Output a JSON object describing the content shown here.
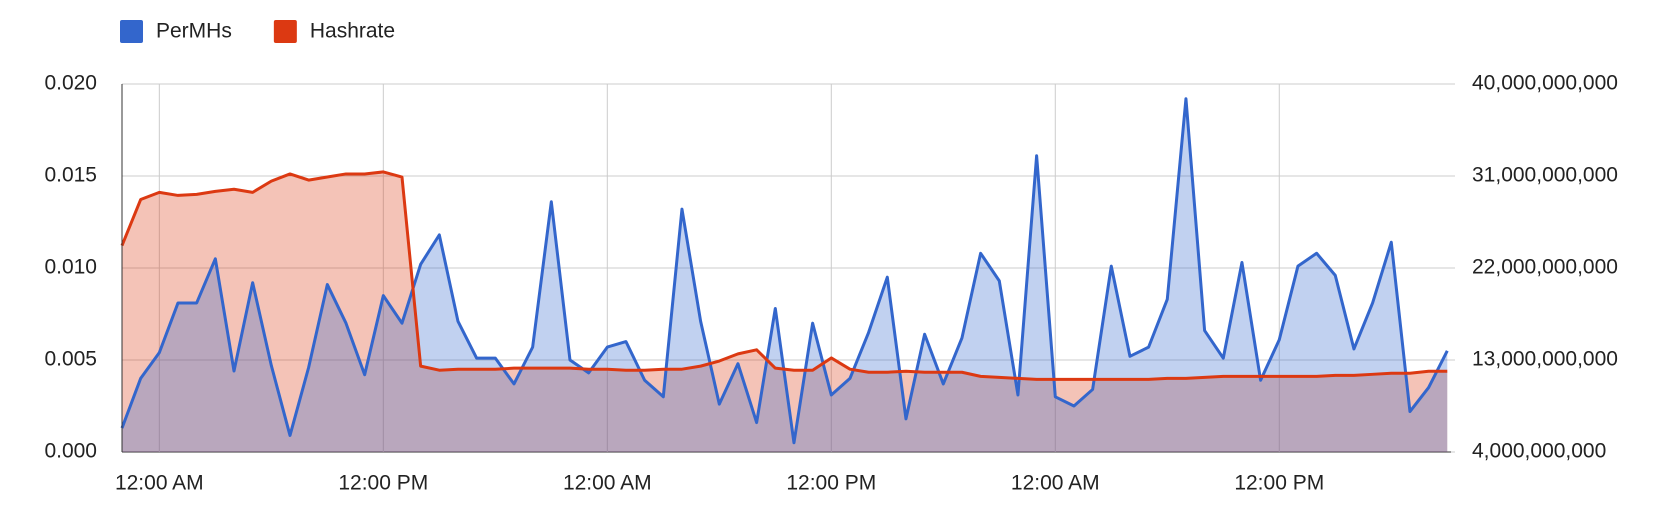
{
  "chart_data": {
    "type": "area",
    "legend": "top",
    "grid": true,
    "x": [
      -2,
      -1,
      0,
      1,
      2,
      3,
      4,
      5,
      6,
      7,
      8,
      9,
      10,
      11,
      12,
      13,
      14,
      15,
      16,
      17,
      18,
      19,
      20,
      21,
      22,
      23,
      24,
      25,
      26,
      27,
      28,
      29,
      30,
      31,
      32,
      33,
      34,
      35,
      36,
      37,
      38,
      39,
      40,
      41,
      42,
      43,
      44,
      45,
      46,
      47,
      48,
      49,
      50,
      51,
      52,
      53,
      54,
      55,
      56,
      57,
      58,
      59,
      60,
      61,
      62,
      63,
      64,
      65,
      66,
      67,
      68,
      69
    ],
    "xlim": [
      -2,
      69.2
    ],
    "xticks": [
      {
        "value": 0,
        "label": "12:00 AM"
      },
      {
        "value": 12,
        "label": "12:00 PM"
      },
      {
        "value": 24,
        "label": "12:00 AM"
      },
      {
        "value": 36,
        "label": "12:00 PM"
      },
      {
        "value": 48,
        "label": "12:00 AM"
      },
      {
        "value": 60,
        "label": "12:00 PM"
      }
    ],
    "ylim": [
      0,
      0.02
    ],
    "yticks": [
      {
        "value": 0,
        "label": "0.000"
      },
      {
        "value": 0.005,
        "label": "0.005"
      },
      {
        "value": 0.01,
        "label": "0.010"
      },
      {
        "value": 0.015,
        "label": "0.015"
      },
      {
        "value": 0.02,
        "label": "0.020"
      }
    ],
    "y2lim": [
      4000000000,
      40000000000
    ],
    "y2ticks": [
      {
        "value": 4000000000,
        "label": "4,000,000,000"
      },
      {
        "value": 13000000000,
        "label": "13,000,000,000"
      },
      {
        "value": 22000000000,
        "label": "22,000,000,000"
      },
      {
        "value": 31000000000,
        "label": "31,000,000,000"
      },
      {
        "value": 40000000000,
        "label": "40,000,000,000"
      }
    ],
    "series": [
      {
        "name": "PerMHs",
        "color": "#3366cc",
        "axis": "y",
        "values": [
          0.0013,
          0.004,
          0.0054,
          0.0081,
          0.0081,
          0.0105,
          0.0044,
          0.0092,
          0.0047,
          0.0009,
          0.0046,
          0.0091,
          0.007,
          0.0042,
          0.0085,
          0.007,
          0.0102,
          0.0118,
          0.0071,
          0.0051,
          0.0051,
          0.0037,
          0.0057,
          0.0136,
          0.005,
          0.0043,
          0.0057,
          0.006,
          0.0039,
          0.003,
          0.0132,
          0.0071,
          0.0026,
          0.0048,
          0.0016,
          0.0078,
          0.0005,
          0.007,
          0.0031,
          0.004,
          0.0065,
          0.0095,
          0.0018,
          0.0064,
          0.0037,
          0.0062,
          0.0108,
          0.0093,
          0.0031,
          0.0161,
          0.003,
          0.0025,
          0.0034,
          0.0101,
          0.0052,
          0.0057,
          0.0083,
          0.0192,
          0.0066,
          0.0051,
          0.0103,
          0.0039,
          0.0061,
          0.0101,
          0.0108,
          0.0096,
          0.0056,
          0.0081,
          0.0114,
          0.0022,
          0.0035,
          0.0055
        ]
      },
      {
        "name": "Hashrate",
        "color": "#dc3912",
        "axis": "y2",
        "values": [
          24200000000,
          28700000000,
          29400000000,
          29100000000,
          29200000000,
          29500000000,
          29700000000,
          29400000000,
          30500000000,
          31200000000,
          30600000000,
          30900000000,
          31200000000,
          31200000000,
          31400000000,
          30900000000,
          12400000000,
          12000000000,
          12100000000,
          12100000000,
          12100000000,
          12200000000,
          12200000000,
          12200000000,
          12200000000,
          12100000000,
          12100000000,
          12000000000,
          12000000000,
          12100000000,
          12100000000,
          12400000000,
          12900000000,
          13600000000,
          14000000000,
          12200000000,
          12000000000,
          12000000000,
          13200000000,
          12100000000,
          11800000000,
          11800000000,
          11900000000,
          11800000000,
          11800000000,
          11800000000,
          11400000000,
          11300000000,
          11200000000,
          11100000000,
          11100000000,
          11100000000,
          11100000000,
          11100000000,
          11100000000,
          11100000000,
          11200000000,
          11200000000,
          11300000000,
          11400000000,
          11400000000,
          11400000000,
          11400000000,
          11400000000,
          11400000000,
          11500000000,
          11500000000,
          11600000000,
          11700000000,
          11700000000,
          11900000000,
          11900000000
        ]
      }
    ]
  }
}
